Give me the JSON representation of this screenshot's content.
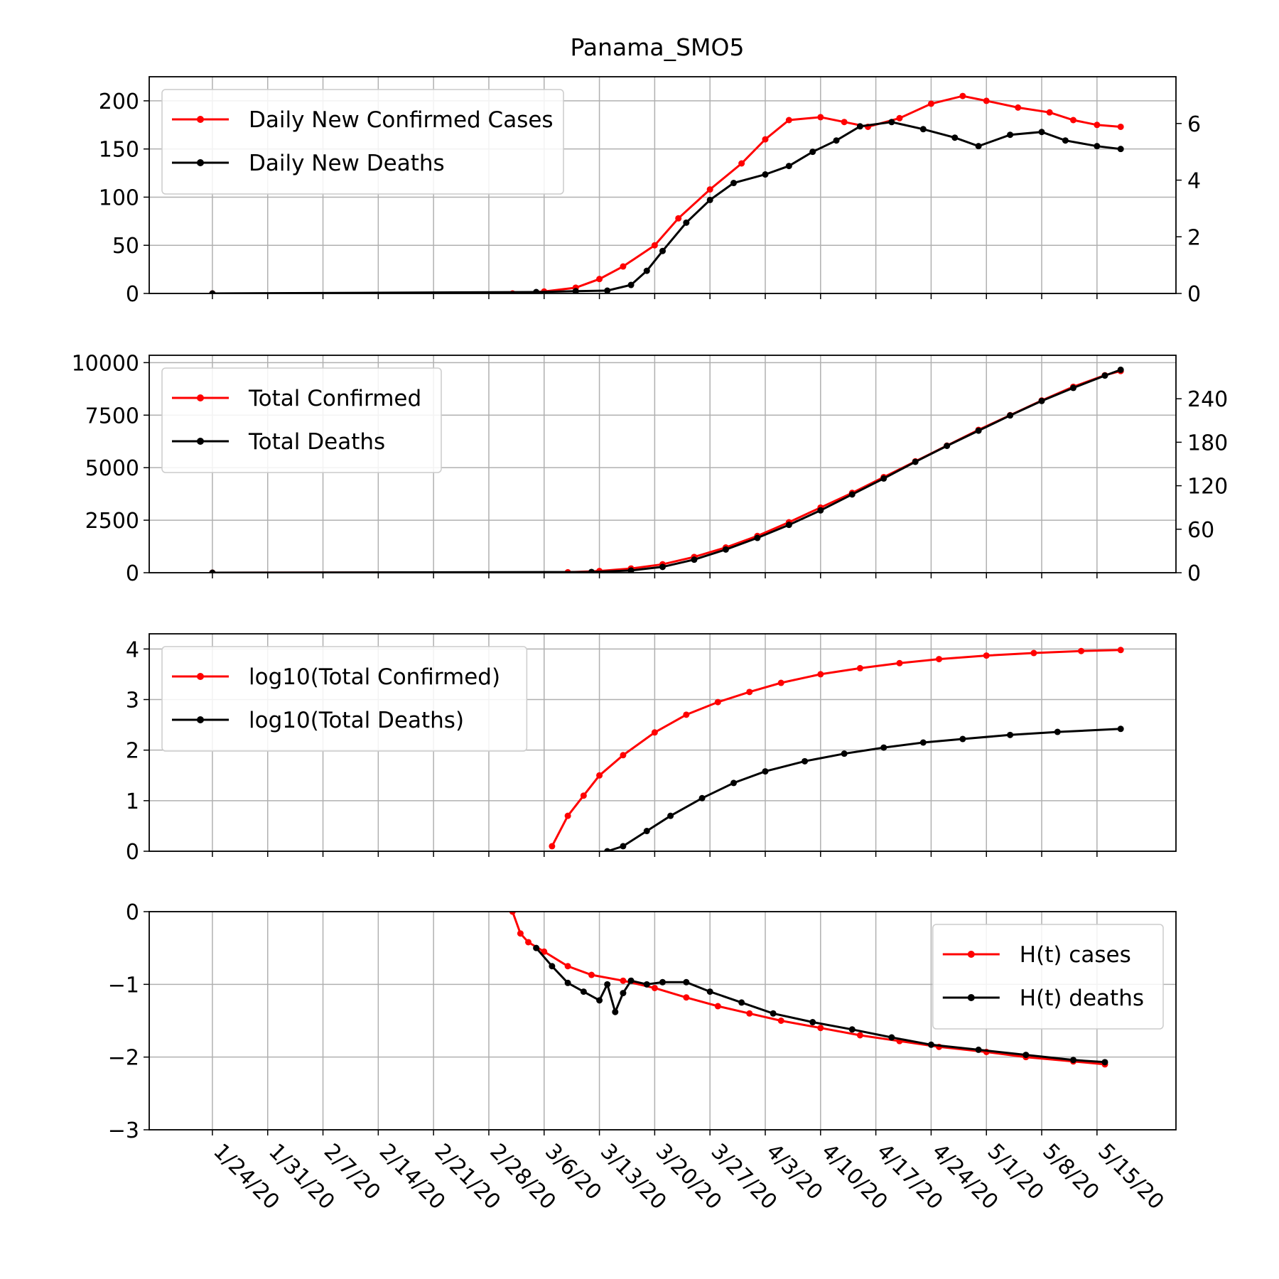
{
  "chart_data": {
    "title": "Panama_SMO5",
    "colors": {
      "cases": "#ff0000",
      "deaths": "#000000",
      "grid": "#b0b0b0"
    },
    "x_ticks": [
      "1/24/20",
      "1/31/20",
      "2/7/20",
      "2/14/20",
      "2/21/20",
      "2/28/20",
      "3/6/20",
      "3/13/20",
      "3/20/20",
      "3/27/20",
      "4/3/20",
      "4/10/20",
      "4/17/20",
      "4/24/20",
      "5/1/20",
      "5/8/20",
      "5/15/20"
    ],
    "panels": [
      {
        "type": "line",
        "left_ylim": [
          0,
          225
        ],
        "left_ticks": [
          0,
          50,
          100,
          150,
          200
        ],
        "right_ylim": [
          0,
          7.65
        ],
        "right_ticks": [
          0,
          2,
          4,
          6
        ],
        "legend": "top-left",
        "series": [
          {
            "name": "Daily New Confirmed Cases",
            "color": "#ff0000",
            "axis": "left",
            "points": [
              [
                "1/24/20",
                0
              ],
              [
                "3/2/20",
                0
              ],
              [
                "3/6/20",
                2
              ],
              [
                "3/10/20",
                6
              ],
              [
                "3/13/20",
                15
              ],
              [
                "3/16/20",
                28
              ],
              [
                "3/20/20",
                50
              ],
              [
                "3/23/20",
                78
              ],
              [
                "3/27/20",
                108
              ],
              [
                "3/31/20",
                135
              ],
              [
                "4/3/20",
                160
              ],
              [
                "4/6/20",
                180
              ],
              [
                "4/10/20",
                183
              ],
              [
                "4/13/20",
                178
              ],
              [
                "4/16/20",
                173
              ],
              [
                "4/20/20",
                182
              ],
              [
                "4/24/20",
                197
              ],
              [
                "4/28/20",
                205
              ],
              [
                "5/1/20",
                200
              ],
              [
                "5/5/20",
                193
              ],
              [
                "5/9/20",
                188
              ],
              [
                "5/12/20",
                180
              ],
              [
                "5/15/20",
                175
              ],
              [
                "5/18/20",
                173
              ]
            ]
          },
          {
            "name": "Daily New Deaths",
            "color": "#000000",
            "axis": "left2",
            "points": [
              [
                "1/24/20",
                0
              ],
              [
                "3/5/20",
                0.05
              ],
              [
                "3/10/20",
                0.08
              ],
              [
                "3/14/20",
                0.1
              ],
              [
                "3/17/20",
                0.3
              ],
              [
                "3/19/20",
                0.8
              ],
              [
                "3/21/20",
                1.5
              ],
              [
                "3/24/20",
                2.5
              ],
              [
                "3/27/20",
                3.3
              ],
              [
                "3/30/20",
                3.9
              ],
              [
                "4/3/20",
                4.2
              ],
              [
                "4/6/20",
                4.5
              ],
              [
                "4/9/20",
                5.0
              ],
              [
                "4/12/20",
                5.4
              ],
              [
                "4/15/20",
                5.9
              ],
              [
                "4/19/20",
                6.05
              ],
              [
                "4/23/20",
                5.8
              ],
              [
                "4/27/20",
                5.5
              ],
              [
                "4/30/20",
                5.2
              ],
              [
                "5/4/20",
                5.6
              ],
              [
                "5/8/20",
                5.7
              ],
              [
                "5/11/20",
                5.4
              ],
              [
                "5/15/20",
                5.2
              ],
              [
                "5/18/20",
                5.1
              ]
            ]
          }
        ]
      },
      {
        "type": "line",
        "left_ylim": [
          0,
          10350
        ],
        "left_ticks": [
          0,
          2500,
          5000,
          7500,
          10000
        ],
        "right_ylim": [
          0,
          300
        ],
        "right_ticks": [
          0,
          60,
          120,
          180,
          240
        ],
        "legend": "top-left",
        "series": [
          {
            "name": "Total Confirmed",
            "color": "#ff0000",
            "axis": "left",
            "points": [
              [
                "1/24/20",
                0
              ],
              [
                "3/9/20",
                20
              ],
              [
                "3/13/20",
                80
              ],
              [
                "3/17/20",
                200
              ],
              [
                "3/21/20",
                400
              ],
              [
                "3/25/20",
                750
              ],
              [
                "3/29/20",
                1200
              ],
              [
                "4/2/20",
                1750
              ],
              [
                "4/6/20",
                2400
              ],
              [
                "4/10/20",
                3100
              ],
              [
                "4/14/20",
                3800
              ],
              [
                "4/18/20",
                4550
              ],
              [
                "4/22/20",
                5300
              ],
              [
                "4/26/20",
                6050
              ],
              [
                "4/30/20",
                6800
              ],
              [
                "5/4/20",
                7500
              ],
              [
                "5/8/20",
                8200
              ],
              [
                "5/12/20",
                8850
              ],
              [
                "5/16/20",
                9400
              ],
              [
                "5/18/20",
                9600
              ]
            ]
          },
          {
            "name": "Total Deaths",
            "color": "#000000",
            "axis": "left2",
            "points": [
              [
                "1/24/20",
                0
              ],
              [
                "3/12/20",
                1
              ],
              [
                "3/17/20",
                3
              ],
              [
                "3/21/20",
                8
              ],
              [
                "3/25/20",
                18
              ],
              [
                "3/29/20",
                32
              ],
              [
                "4/2/20",
                48
              ],
              [
                "4/6/20",
                66
              ],
              [
                "4/10/20",
                86
              ],
              [
                "4/14/20",
                108
              ],
              [
                "4/18/20",
                130
              ],
              [
                "4/22/20",
                153
              ],
              [
                "4/26/20",
                175
              ],
              [
                "4/30/20",
                196
              ],
              [
                "5/4/20",
                217
              ],
              [
                "5/8/20",
                237
              ],
              [
                "5/12/20",
                255
              ],
              [
                "5/16/20",
                272
              ],
              [
                "5/18/20",
                280
              ]
            ]
          }
        ]
      },
      {
        "type": "line",
        "left_ylim": [
          0,
          4.3
        ],
        "left_ticks": [
          0,
          1,
          2,
          3,
          4
        ],
        "legend": "top-left",
        "series": [
          {
            "name": "log10(Total Confirmed)",
            "color": "#ff0000",
            "axis": "left",
            "points": [
              [
                "3/7/20",
                0.1
              ],
              [
                "3/9/20",
                0.7
              ],
              [
                "3/11/20",
                1.1
              ],
              [
                "3/13/20",
                1.5
              ],
              [
                "3/16/20",
                1.9
              ],
              [
                "3/20/20",
                2.35
              ],
              [
                "3/24/20",
                2.7
              ],
              [
                "3/28/20",
                2.95
              ],
              [
                "4/1/20",
                3.15
              ],
              [
                "4/5/20",
                3.33
              ],
              [
                "4/10/20",
                3.5
              ],
              [
                "4/15/20",
                3.62
              ],
              [
                "4/20/20",
                3.72
              ],
              [
                "4/25/20",
                3.8
              ],
              [
                "5/1/20",
                3.87
              ],
              [
                "5/7/20",
                3.92
              ],
              [
                "5/13/20",
                3.96
              ],
              [
                "5/18/20",
                3.98
              ]
            ]
          },
          {
            "name": "log10(Total Deaths)",
            "color": "#000000",
            "axis": "left",
            "points": [
              [
                "3/14/20",
                0
              ],
              [
                "3/16/20",
                0.1
              ],
              [
                "3/19/20",
                0.4
              ],
              [
                "3/22/20",
                0.7
              ],
              [
                "3/26/20",
                1.05
              ],
              [
                "3/30/20",
                1.35
              ],
              [
                "4/3/20",
                1.58
              ],
              [
                "4/8/20",
                1.78
              ],
              [
                "4/13/20",
                1.93
              ],
              [
                "4/18/20",
                2.05
              ],
              [
                "4/23/20",
                2.15
              ],
              [
                "4/28/20",
                2.22
              ],
              [
                "5/4/20",
                2.3
              ],
              [
                "5/10/20",
                2.36
              ],
              [
                "5/18/20",
                2.42
              ]
            ]
          }
        ]
      },
      {
        "type": "line",
        "left_ylim": [
          -3,
          0
        ],
        "left_ticks": [
          -3,
          -2,
          -1,
          0
        ],
        "legend": "top-right",
        "series": [
          {
            "name": "H(t) cases",
            "color": "#ff0000",
            "axis": "left",
            "points": [
              [
                "3/2/20",
                0
              ],
              [
                "3/3/20",
                -0.3
              ],
              [
                "3/4/20",
                -0.42
              ],
              [
                "3/6/20",
                -0.55
              ],
              [
                "3/9/20",
                -0.75
              ],
              [
                "3/12/20",
                -0.87
              ],
              [
                "3/16/20",
                -0.95
              ],
              [
                "3/20/20",
                -1.05
              ],
              [
                "3/24/20",
                -1.18
              ],
              [
                "3/28/20",
                -1.3
              ],
              [
                "4/1/20",
                -1.4
              ],
              [
                "4/5/20",
                -1.5
              ],
              [
                "4/10/20",
                -1.6
              ],
              [
                "4/15/20",
                -1.7
              ],
              [
                "4/20/20",
                -1.78
              ],
              [
                "4/25/20",
                -1.86
              ],
              [
                "5/1/20",
                -1.93
              ],
              [
                "5/6/20",
                -2.0
              ],
              [
                "5/12/20",
                -2.06
              ],
              [
                "5/16/20",
                -2.1
              ]
            ]
          },
          {
            "name": "H(t) deaths",
            "color": "#000000",
            "axis": "left",
            "points": [
              [
                "3/5/20",
                -0.5
              ],
              [
                "3/7/20",
                -0.75
              ],
              [
                "3/9/20",
                -0.98
              ],
              [
                "3/11/20",
                -1.1
              ],
              [
                "3/13/20",
                -1.22
              ],
              [
                "3/14/20",
                -1.0
              ],
              [
                "3/15/20",
                -1.38
              ],
              [
                "3/16/20",
                -1.12
              ],
              [
                "3/17/20",
                -0.95
              ],
              [
                "3/19/20",
                -1.0
              ],
              [
                "3/21/20",
                -0.97
              ],
              [
                "3/24/20",
                -0.97
              ],
              [
                "3/27/20",
                -1.1
              ],
              [
                "3/31/20",
                -1.25
              ],
              [
                "4/4/20",
                -1.4
              ],
              [
                "4/9/20",
                -1.52
              ],
              [
                "4/14/20",
                -1.62
              ],
              [
                "4/19/20",
                -1.73
              ],
              [
                "4/24/20",
                -1.83
              ],
              [
                "4/30/20",
                -1.9
              ],
              [
                "5/6/20",
                -1.97
              ],
              [
                "5/12/20",
                -2.04
              ],
              [
                "5/16/20",
                -2.07
              ]
            ]
          }
        ]
      }
    ]
  }
}
